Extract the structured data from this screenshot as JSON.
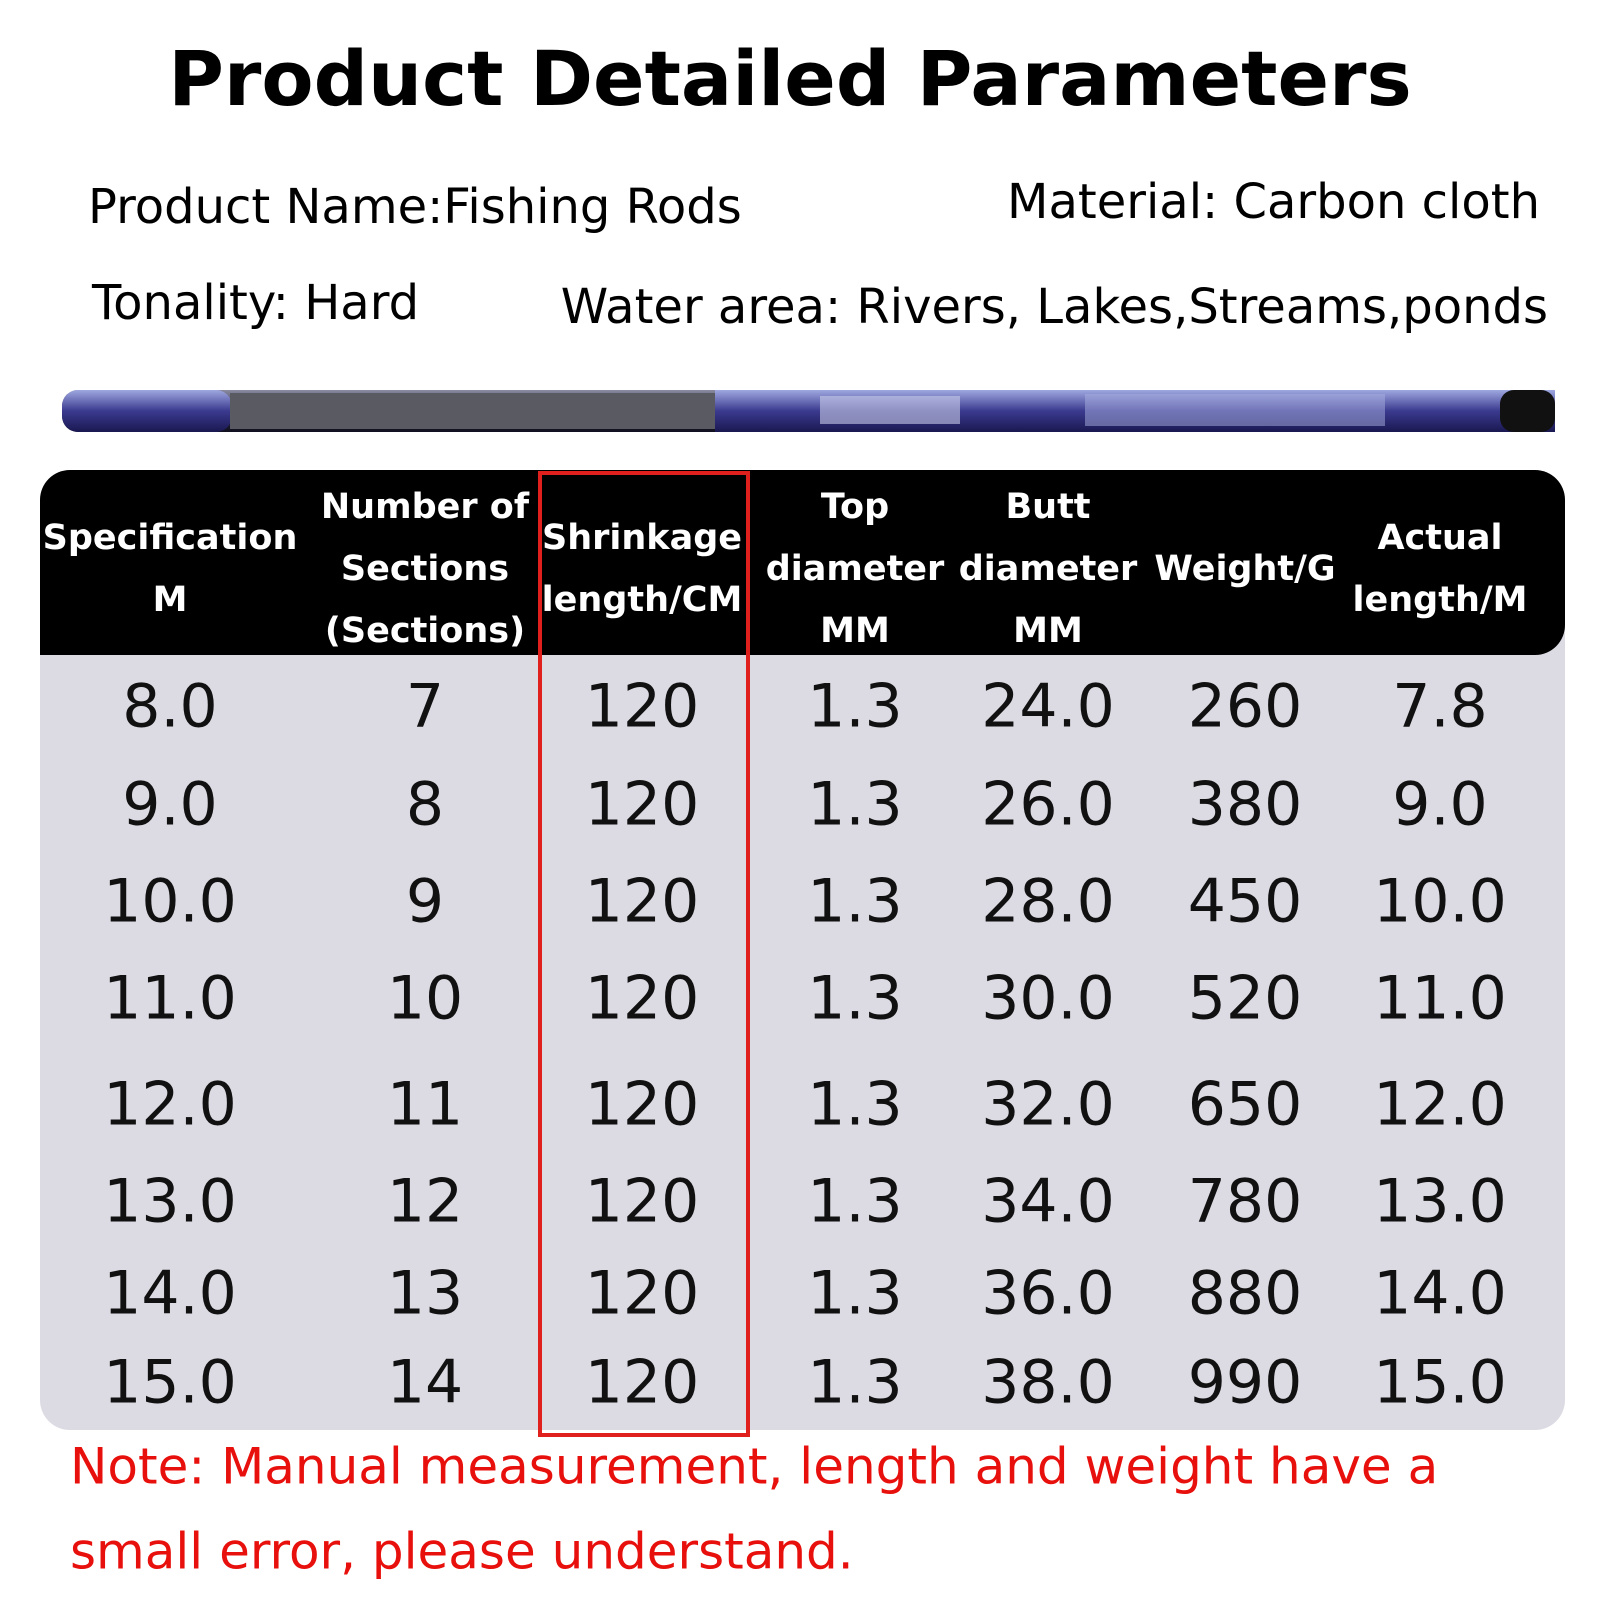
{
  "header": {
    "title": "Product Detailed Parameters"
  },
  "info": {
    "product_name": "Product Name:Fishing Rods",
    "material": "Material: Carbon cloth",
    "tonality": "Tonality: Hard",
    "water_area": "Water area: Rivers, Lakes,Streams,ponds"
  },
  "table": {
    "columns": [
      [
        "Specification",
        "M"
      ],
      [
        "Number of",
        "Sections",
        "(Sections)"
      ],
      [
        "Shrinkage",
        "length/CM"
      ],
      [
        "Top",
        "diameter",
        "MM"
      ],
      [
        "Butt",
        "diameter",
        "MM"
      ],
      [
        "Weight/G"
      ],
      [
        "Actual",
        "length/M"
      ]
    ],
    "rows": [
      [
        "8.0",
        "7",
        "120",
        "1.3",
        "24.0",
        "260",
        "7.8"
      ],
      [
        "9.0",
        "8",
        "120",
        "1.3",
        "26.0",
        "380",
        "9.0"
      ],
      [
        "10.0",
        "9",
        "120",
        "1.3",
        "28.0",
        "450",
        "10.0"
      ],
      [
        "11.0",
        "10",
        "120",
        "1.3",
        "30.0",
        "520",
        "11.0"
      ],
      [
        "12.0",
        "11",
        "120",
        "1.3",
        "32.0",
        "650",
        "12.0"
      ],
      [
        "13.0",
        "12",
        "120",
        "1.3",
        "34.0",
        "780",
        "13.0"
      ],
      [
        "14.0",
        "13",
        "120",
        "1.3",
        "36.0",
        "880",
        "14.0"
      ],
      [
        "15.0",
        "14",
        "120",
        "1.3",
        "38.0",
        "990",
        "15.0"
      ]
    ]
  },
  "note": [
    "Note: Manual measurement, length and weight have a",
    "small error, please understand."
  ]
}
